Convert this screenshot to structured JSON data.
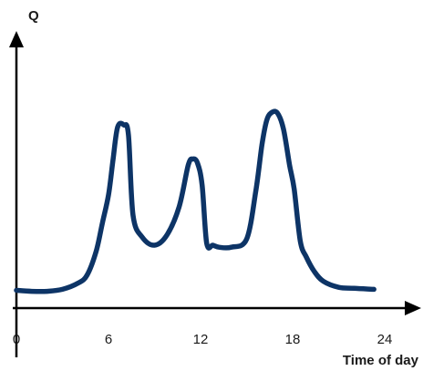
{
  "chart_data": {
    "type": "line",
    "title": "",
    "xlabel": "Time of day",
    "ylabel": "Q",
    "xlim": [
      0,
      24
    ],
    "ylim": [
      0,
      1
    ],
    "x_ticks": [
      "0",
      "6",
      "12",
      "18",
      "24"
    ],
    "x_tick_values": [
      0,
      6,
      12,
      18,
      24
    ],
    "y_ticks": [],
    "grid": false,
    "legend": "none",
    "line_color": "#0d3466",
    "axis_color": "#000000",
    "series": [
      {
        "x": [
          0,
          1,
          2,
          3,
          4,
          4.6,
          5.2,
          5.6,
          6.0,
          6.3,
          6.6,
          7.0,
          7.3,
          7.6,
          8.2,
          9.0,
          9.8,
          10.6,
          11.2,
          11.5,
          11.8,
          12.1,
          12.4,
          12.8,
          13.2,
          14.0,
          15.0,
          15.6,
          16.0,
          16.3,
          16.6,
          17.0,
          17.4,
          17.8,
          18.1,
          18.5,
          18.9,
          19.4,
          20.0,
          21.0,
          22.0,
          23.3
        ],
        "y": [
          0.025,
          0.02,
          0.02,
          0.03,
          0.06,
          0.1,
          0.22,
          0.36,
          0.5,
          0.68,
          0.84,
          0.85,
          0.8,
          0.4,
          0.29,
          0.25,
          0.3,
          0.44,
          0.65,
          0.68,
          0.66,
          0.55,
          0.26,
          0.25,
          0.24,
          0.24,
          0.28,
          0.52,
          0.75,
          0.87,
          0.91,
          0.91,
          0.83,
          0.65,
          0.53,
          0.27,
          0.19,
          0.12,
          0.07,
          0.04,
          0.035,
          0.03
        ]
      }
    ]
  }
}
